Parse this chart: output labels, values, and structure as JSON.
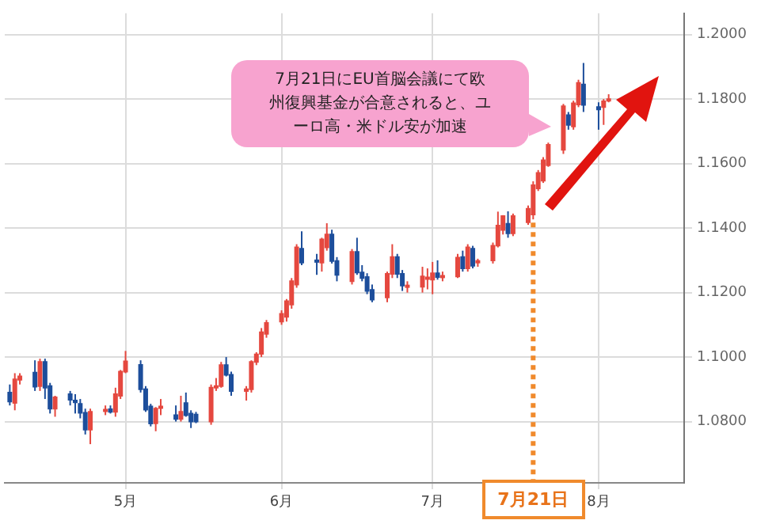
{
  "chart_data": {
    "type": "candlestick",
    "x": [
      "--04-08",
      "--04-09",
      "--04-10",
      "--04-13",
      "--04-14",
      "--04-15",
      "--04-16",
      "--04-17",
      "--04-20",
      "--04-21",
      "--04-22",
      "--04-23",
      "--04-24",
      "--04-27",
      "--04-28",
      "--04-29",
      "--04-30",
      "--05-01",
      "--05-04",
      "--05-05",
      "--05-06",
      "--05-07",
      "--05-08",
      "--05-11",
      "--05-12",
      "--05-13",
      "--05-14",
      "--05-15",
      "--05-18",
      "--05-19",
      "--05-20",
      "--05-21",
      "--05-22",
      "--05-25",
      "--05-26",
      "--05-27",
      "--05-28",
      "--05-29",
      "--06-01",
      "--06-02",
      "--06-03",
      "--06-04",
      "--06-05",
      "--06-08",
      "--06-09",
      "--06-10",
      "--06-11",
      "--06-12",
      "--06-15",
      "--06-16",
      "--06-17",
      "--06-18",
      "--06-19",
      "--06-22",
      "--06-23",
      "--06-24",
      "--06-25",
      "--06-26",
      "--06-29",
      "--06-30",
      "--07-01",
      "--07-02",
      "--07-03",
      "--07-06",
      "--07-07",
      "--07-08",
      "--07-09",
      "--07-10",
      "--07-13",
      "--07-14",
      "--07-15",
      "--07-16",
      "--07-17",
      "--07-20",
      "--07-21",
      "--07-22",
      "--07-23",
      "--07-24",
      "--07-27",
      "--07-28",
      "--07-29",
      "--07-30",
      "--07-31",
      "--08-03",
      "--08-04",
      "--08-05"
    ],
    "ohlc": [
      [
        1.089,
        1.0915,
        1.085,
        1.0862
      ],
      [
        1.0858,
        1.095,
        1.0835,
        1.0931
      ],
      [
        1.093,
        1.095,
        1.0915,
        1.094
      ],
      [
        1.0952,
        1.099,
        1.0895,
        1.0908
      ],
      [
        1.091,
        1.0995,
        1.0895,
        1.0985
      ],
      [
        1.0985,
        1.0995,
        1.087,
        1.0905
      ],
      [
        1.091,
        1.092,
        1.0825,
        1.084
      ],
      [
        1.084,
        1.088,
        1.0815,
        1.0875
      ],
      [
        1.0885,
        1.0895,
        1.085,
        1.0868
      ],
      [
        1.0865,
        1.0885,
        1.0825,
        1.086
      ],
      [
        1.0855,
        1.087,
        1.081,
        1.0827
      ],
      [
        1.0827,
        1.084,
        1.076,
        1.0775
      ],
      [
        1.0775,
        1.084,
        1.073,
        1.083
      ],
      [
        1.0833,
        1.085,
        1.082,
        1.0837
      ],
      [
        1.0838,
        1.085,
        1.0825,
        1.083
      ],
      [
        1.083,
        1.0905,
        1.0815,
        1.0885
      ],
      [
        1.088,
        1.096,
        1.087,
        1.0955
      ],
      [
        1.0955,
        1.1019,
        1.095,
        1.0987
      ],
      [
        1.0976,
        1.099,
        1.089,
        1.09
      ],
      [
        1.09,
        1.091,
        1.083,
        1.0837
      ],
      [
        1.0847,
        1.0855,
        1.0785,
        1.0794
      ],
      [
        1.0795,
        1.0845,
        1.077,
        1.084
      ],
      [
        1.0842,
        1.087,
        1.082,
        1.0847
      ],
      [
        1.082,
        1.085,
        1.08,
        1.0808
      ],
      [
        1.0808,
        1.088,
        1.08,
        1.083
      ],
      [
        1.0857,
        1.089,
        1.0815,
        1.082
      ],
      [
        1.0825,
        1.0835,
        1.078,
        1.08
      ],
      [
        1.0822,
        1.083,
        1.0795,
        1.08
      ],
      [
        1.08,
        1.0915,
        1.079,
        1.0905
      ],
      [
        1.0905,
        1.0935,
        1.0895,
        1.091
      ],
      [
        1.091,
        1.0985,
        1.0905,
        1.0975
      ],
      [
        1.0975,
        1.1,
        1.094,
        1.0945
      ],
      [
        1.0945,
        1.0955,
        1.088,
        1.0895
      ],
      [
        1.0895,
        1.091,
        1.0865,
        1.09
      ],
      [
        1.09,
        1.099,
        1.089,
        1.0985
      ],
      [
        1.0985,
        1.1015,
        1.0975,
        1.1008
      ],
      [
        1.101,
        1.109,
        1.1,
        1.1077
      ],
      [
        1.1072,
        1.1115,
        1.106,
        1.1106
      ],
      [
        1.111,
        1.1145,
        1.11,
        1.1134
      ],
      [
        1.1125,
        1.118,
        1.111,
        1.1173
      ],
      [
        1.1163,
        1.1245,
        1.115,
        1.1235
      ],
      [
        1.1225,
        1.135,
        1.1215,
        1.134
      ],
      [
        1.1336,
        1.139,
        1.1285,
        1.1293
      ],
      [
        1.13,
        1.132,
        1.1255,
        1.1296
      ],
      [
        1.1293,
        1.137,
        1.1265,
        1.1365
      ],
      [
        1.134,
        1.1415,
        1.133,
        1.138
      ],
      [
        1.138,
        1.1395,
        1.129,
        1.1298
      ],
      [
        1.1298,
        1.131,
        1.1235,
        1.1255
      ],
      [
        1.1235,
        1.1335,
        1.1225,
        1.1326
      ],
      [
        1.1326,
        1.137,
        1.1255,
        1.1262
      ],
      [
        1.1262,
        1.1285,
        1.1235,
        1.1245
      ],
      [
        1.1248,
        1.126,
        1.1195,
        1.1205
      ],
      [
        1.1208,
        1.1225,
        1.117,
        1.1178
      ],
      [
        1.1185,
        1.1265,
        1.117,
        1.1258
      ],
      [
        1.1258,
        1.135,
        1.1245,
        1.131
      ],
      [
        1.131,
        1.132,
        1.1245,
        1.1258
      ],
      [
        1.1258,
        1.127,
        1.1205,
        1.1222
      ],
      [
        1.1218,
        1.1235,
        1.12,
        1.1222
      ],
      [
        1.1218,
        1.128,
        1.12,
        1.125
      ],
      [
        1.1243,
        1.1275,
        1.121,
        1.1247
      ],
      [
        1.124,
        1.1295,
        1.1195,
        1.126
      ],
      [
        1.126,
        1.13,
        1.124,
        1.1248
      ],
      [
        1.1248,
        1.1265,
        1.1235,
        1.1252
      ],
      [
        1.125,
        1.132,
        1.1245,
        1.1308
      ],
      [
        1.131,
        1.133,
        1.1265,
        1.1275
      ],
      [
        1.1275,
        1.135,
        1.1265,
        1.134
      ],
      [
        1.1336,
        1.1345,
        1.1275,
        1.1283
      ],
      [
        1.1294,
        1.1305,
        1.128,
        1.1298
      ],
      [
        1.13,
        1.1355,
        1.129,
        1.1345
      ],
      [
        1.1346,
        1.1451,
        1.134,
        1.1408
      ],
      [
        1.1394,
        1.144,
        1.138,
        1.1437
      ],
      [
        1.1413,
        1.1452,
        1.137,
        1.1384
      ],
      [
        1.1384,
        1.1445,
        1.1375,
        1.1437
      ],
      [
        1.1418,
        1.147,
        1.141,
        1.146
      ],
      [
        1.1442,
        1.1545,
        1.1427,
        1.1533
      ],
      [
        1.1523,
        1.158,
        1.1515,
        1.1571
      ],
      [
        1.1547,
        1.162,
        1.154,
        1.161
      ],
      [
        1.1595,
        1.1665,
        1.159,
        1.1658
      ],
      [
        1.1643,
        1.1785,
        1.163,
        1.1778
      ],
      [
        1.175,
        1.176,
        1.1705,
        1.172
      ],
      [
        1.1715,
        1.1795,
        1.1705,
        1.1787
      ],
      [
        1.1783,
        1.186,
        1.1775,
        1.185
      ],
      [
        1.1845,
        1.1912,
        1.176,
        1.1782
      ],
      [
        1.1775,
        1.179,
        1.1705,
        1.1768
      ],
      [
        1.1775,
        1.18,
        1.172,
        1.1793
      ],
      [
        1.1795,
        1.1815,
        1.179,
        1.18
      ]
    ],
    "colors": [
      "#1d4e9b",
      "#e5483f",
      "#e5483f",
      "#1d4e9b",
      "#e5483f",
      "#1d4e9b",
      "#1d4e9b",
      "#e5483f",
      "#1d4e9b",
      "#1d4e9b",
      "#1d4e9b",
      "#1d4e9b",
      "#e5483f",
      "#e5483f",
      "#1d4e9b",
      "#e5483f",
      "#e5483f",
      "#e5483f",
      "#1d4e9b",
      "#1d4e9b",
      "#1d4e9b",
      "#e5483f",
      "#e5483f",
      "#1d4e9b",
      "#e5483f",
      "#1d4e9b",
      "#1d4e9b",
      "#1d4e9b",
      "#e5483f",
      "#e5483f",
      "#e5483f",
      "#1d4e9b",
      "#1d4e9b",
      "#e5483f",
      "#e5483f",
      "#e5483f",
      "#e5483f",
      "#e5483f",
      "#e5483f",
      "#e5483f",
      "#e5483f",
      "#e5483f",
      "#1d4e9b",
      "#1d4e9b",
      "#e5483f",
      "#e5483f",
      "#1d4e9b",
      "#1d4e9b",
      "#e5483f",
      "#1d4e9b",
      "#1d4e9b",
      "#1d4e9b",
      "#1d4e9b",
      "#e5483f",
      "#e5483f",
      "#1d4e9b",
      "#1d4e9b",
      "#e5483f",
      "#e5483f",
      "#e5483f",
      "#e5483f",
      "#1d4e9b",
      "#e5483f",
      "#e5483f",
      "#1d4e9b",
      "#e5483f",
      "#1d4e9b",
      "#e5483f",
      "#e5483f",
      "#e5483f",
      "#e5483f",
      "#1d4e9b",
      "#e5483f",
      "#e5483f",
      "#e5483f",
      "#e5483f",
      "#e5483f",
      "#e5483f",
      "#e5483f",
      "#1d4e9b",
      "#e5483f",
      "#e5483f",
      "#1d4e9b",
      "#1d4e9b",
      "#e5483f",
      "#e5483f"
    ],
    "xlim": [
      "--04-07",
      "--08-20"
    ],
    "xticks": [
      {
        "value": "--05-01",
        "label": "5月"
      },
      {
        "value": "--06-01",
        "label": "6月"
      },
      {
        "value": "--07-01",
        "label": "7月"
      },
      {
        "value": "--08-03",
        "label": "8月"
      }
    ],
    "ylim": [
      1.061,
      1.2066
    ],
    "yticks": [
      {
        "value": 1.08,
        "label": "1.0800"
      },
      {
        "value": 1.1,
        "label": "1.1000"
      },
      {
        "value": 1.12,
        "label": "1.1200"
      },
      {
        "value": 1.14,
        "label": "1.1400"
      },
      {
        "value": 1.16,
        "label": "1.1600"
      },
      {
        "value": 1.18,
        "label": "1.1800"
      },
      {
        "value": 1.2,
        "label": "1.2000"
      }
    ],
    "grid": true,
    "annotations": [
      "7月21日にEU首脳会議にて欧州復興基金が合意されると、ユーロ高・米ドル安が加速",
      {
        "text": "7月21日",
        "x": "--07-21",
        "y": 1.1427
      }
    ]
  }
}
